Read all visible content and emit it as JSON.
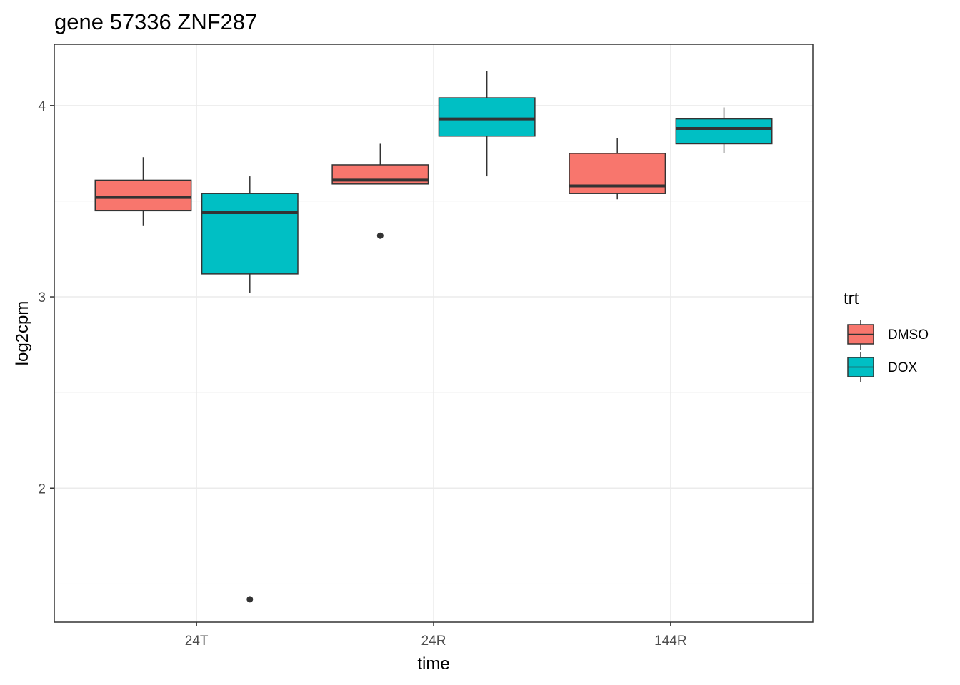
{
  "chart_data": {
    "type": "boxplot",
    "title": "gene 57336 ZNF287",
    "xlabel": "time",
    "ylabel": "log2cpm",
    "categories": [
      "24T",
      "24R",
      "144R"
    ],
    "ylim": [
      1.3,
      4.32
    ],
    "y_ticks": [
      2,
      3,
      4
    ],
    "y_tick_labels": [
      "2",
      "3",
      "4"
    ],
    "grid": true,
    "legend": {
      "title": "trt",
      "position": "right",
      "entries": [
        {
          "label": "DMSO",
          "color": "#F8766D"
        },
        {
          "label": "DOX",
          "color": "#00BFC4"
        }
      ]
    },
    "series": [
      {
        "name": "DMSO",
        "color": "#F8766D",
        "boxes": [
          {
            "category": "24T",
            "lower_whisker": 3.37,
            "q1": 3.45,
            "median": 3.52,
            "q3": 3.61,
            "upper_whisker": 3.73,
            "outliers": []
          },
          {
            "category": "24R",
            "lower_whisker": 3.59,
            "q1": 3.59,
            "median": 3.61,
            "q3": 3.69,
            "upper_whisker": 3.8,
            "outliers": [
              3.32
            ]
          },
          {
            "category": "144R",
            "lower_whisker": 3.51,
            "q1": 3.54,
            "median": 3.58,
            "q3": 3.75,
            "upper_whisker": 3.83,
            "outliers": []
          }
        ]
      },
      {
        "name": "DOX",
        "color": "#00BFC4",
        "boxes": [
          {
            "category": "24T",
            "lower_whisker": 3.02,
            "q1": 3.12,
            "median": 3.44,
            "q3": 3.54,
            "upper_whisker": 3.63,
            "outliers": [
              1.42
            ]
          },
          {
            "category": "24R",
            "lower_whisker": 3.63,
            "q1": 3.84,
            "median": 3.93,
            "q3": 4.04,
            "upper_whisker": 4.18,
            "outliers": []
          },
          {
            "category": "144R",
            "lower_whisker": 3.75,
            "q1": 3.8,
            "median": 3.88,
            "q3": 3.93,
            "upper_whisker": 3.99,
            "outliers": []
          }
        ]
      }
    ]
  }
}
